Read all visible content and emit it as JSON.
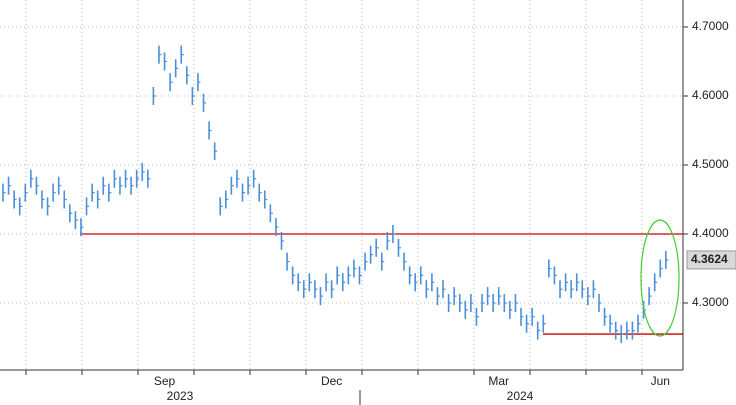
{
  "chart_data": {
    "type": "price",
    "categories": [
      null,
      null,
      null,
      null,
      null,
      null,
      null,
      null,
      null,
      null,
      null,
      null,
      null,
      null,
      null,
      null,
      null,
      null,
      null,
      null,
      null,
      null,
      null,
      null,
      null,
      null,
      null,
      null,
      null,
      "Sep",
      null,
      null,
      null,
      null,
      null,
      null,
      null,
      null,
      null,
      null,
      null,
      null,
      null,
      null,
      null,
      null,
      null,
      null,
      null,
      null,
      null,
      null,
      null,
      null,
      null,
      null,
      null,
      null,
      null,
      "Dec",
      null,
      null,
      null,
      null,
      null,
      null,
      null,
      null,
      null,
      null,
      null,
      null,
      null,
      null,
      null,
      null,
      null,
      null,
      null,
      null,
      null,
      null,
      null,
      null,
      null,
      null,
      null,
      null,
      null,
      "Mar",
      null,
      null,
      null,
      null,
      null,
      null,
      null,
      null,
      null,
      null,
      null,
      null,
      null,
      null,
      null,
      null,
      null,
      null,
      null,
      null,
      null,
      null,
      null,
      null,
      null,
      null,
      null,
      null,
      "Jun",
      null
    ],
    "year_labels": [
      "2023",
      "2024"
    ],
    "values": [
      4.46,
      4.47,
      4.45,
      4.44,
      4.46,
      4.48,
      4.47,
      4.45,
      4.44,
      4.46,
      4.47,
      4.45,
      4.43,
      4.42,
      4.41,
      4.44,
      4.46,
      4.45,
      4.47,
      4.46,
      4.48,
      4.47,
      4.48,
      4.47,
      4.48,
      4.49,
      4.48,
      4.6,
      4.66,
      4.65,
      4.62,
      4.64,
      4.66,
      4.63,
      4.6,
      4.62,
      4.59,
      4.55,
      4.52,
      4.44,
      4.45,
      4.47,
      4.48,
      4.46,
      4.47,
      4.48,
      4.46,
      4.45,
      4.43,
      4.41,
      4.39,
      4.36,
      4.34,
      4.33,
      4.32,
      4.33,
      4.32,
      4.31,
      4.33,
      4.32,
      4.34,
      4.33,
      4.34,
      4.35,
      4.34,
      4.36,
      4.37,
      4.38,
      4.36,
      4.39,
      4.4,
      4.38,
      4.36,
      4.34,
      4.33,
      4.34,
      4.32,
      4.33,
      4.31,
      4.32,
      4.3,
      4.31,
      4.3,
      4.29,
      4.3,
      4.28,
      4.3,
      4.31,
      4.3,
      4.31,
      4.3,
      4.29,
      4.3,
      4.28,
      4.27,
      4.28,
      4.26,
      4.27,
      4.35,
      4.34,
      4.32,
      4.33,
      4.32,
      4.33,
      4.32,
      4.31,
      4.32,
      4.3,
      4.28,
      4.27,
      4.26,
      4.255,
      4.26,
      4.26,
      4.27,
      4.29,
      4.31,
      4.33,
      4.35,
      4.3624
    ],
    "color": "#4a90d9",
    "ylim": [
      4.2029,
      4.7391
    ],
    "yticks": [
      {
        "value": 4.3,
        "label": "4.3000"
      },
      {
        "value": 4.4,
        "label": "4.4000"
      },
      {
        "value": 4.5,
        "label": "4.5000"
      },
      {
        "value": 4.6,
        "label": "4.6000"
      },
      {
        "value": 4.7,
        "label": "4.7000"
      }
    ],
    "grid": true,
    "reference_lines": [
      {
        "value": 4.4,
        "color": "#cc0000"
      },
      {
        "value": 4.255,
        "color": "#cc0000"
      }
    ]
  }
}
